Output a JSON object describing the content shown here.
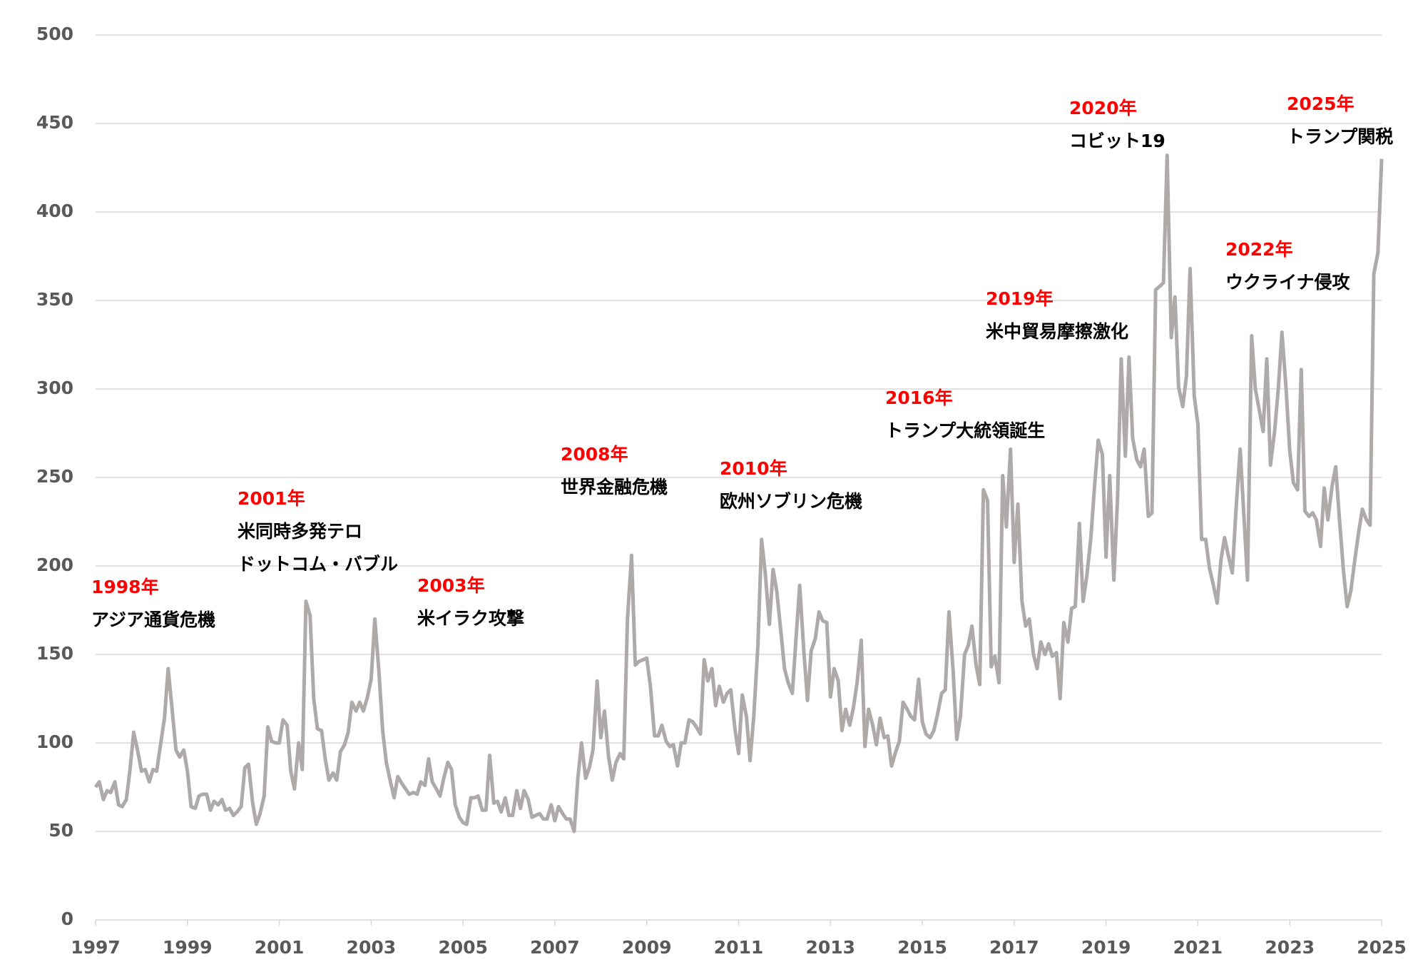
{
  "chart_data": {
    "type": "line",
    "x": [
      1997,
      1997.08,
      1997.17,
      1997.25,
      1997.33,
      1997.42,
      1997.5,
      1997.58,
      1997.67,
      1997.75,
      1997.83,
      1997.92,
      1998,
      1998.08,
      1998.17,
      1998.25,
      1998.33,
      1998.42,
      1998.5,
      1998.58,
      1998.67,
      1998.75,
      1998.83,
      1998.92,
      1999,
      1999.08,
      1999.17,
      1999.25,
      1999.33,
      1999.42,
      1999.5,
      1999.58,
      1999.67,
      1999.75,
      1999.83,
      1999.92,
      2000,
      2000.08,
      2000.17,
      2000.25,
      2000.33,
      2000.42,
      2000.5,
      2000.58,
      2000.67,
      2000.75,
      2000.83,
      2000.92,
      2001,
      2001.08,
      2001.17,
      2001.25,
      2001.33,
      2001.42,
      2001.5,
      2001.58,
      2001.67,
      2001.75,
      2001.83,
      2001.92,
      2002,
      2002.08,
      2002.17,
      2002.25,
      2002.33,
      2002.42,
      2002.5,
      2002.58,
      2002.67,
      2002.75,
      2002.83,
      2002.92,
      2003,
      2003.08,
      2003.17,
      2003.25,
      2003.33,
      2003.42,
      2003.5,
      2003.58,
      2003.67,
      2003.75,
      2003.83,
      2003.92,
      2004,
      2004.08,
      2004.17,
      2004.25,
      2004.33,
      2004.42,
      2004.5,
      2004.58,
      2004.67,
      2004.75,
      2004.83,
      2004.92,
      2005,
      2005.08,
      2005.17,
      2005.25,
      2005.33,
      2005.42,
      2005.5,
      2005.58,
      2005.67,
      2005.75,
      2005.83,
      2005.92,
      2006,
      2006.08,
      2006.17,
      2006.25,
      2006.33,
      2006.42,
      2006.5,
      2006.58,
      2006.67,
      2006.75,
      2006.83,
      2006.92,
      2007,
      2007.08,
      2007.17,
      2007.25,
      2007.33,
      2007.42,
      2007.5,
      2007.58,
      2007.67,
      2007.75,
      2007.83,
      2007.92,
      2008,
      2008.08,
      2008.17,
      2008.25,
      2008.33,
      2008.42,
      2008.5,
      2008.58,
      2008.67,
      2008.75,
      2008.83,
      2008.92,
      2009,
      2009.08,
      2009.17,
      2009.25,
      2009.33,
      2009.42,
      2009.5,
      2009.58,
      2009.67,
      2009.75,
      2009.83,
      2009.92,
      2010,
      2010.08,
      2010.17,
      2010.25,
      2010.33,
      2010.42,
      2010.5,
      2010.58,
      2010.67,
      2010.75,
      2010.83,
      2010.92,
      2011,
      2011.08,
      2011.17,
      2011.25,
      2011.33,
      2011.42,
      2011.5,
      2011.58,
      2011.67,
      2011.75,
      2011.83,
      2011.92,
      2012,
      2012.08,
      2012.17,
      2012.25,
      2012.33,
      2012.42,
      2012.5,
      2012.58,
      2012.67,
      2012.75,
      2012.83,
      2012.92,
      2013,
      2013.08,
      2013.17,
      2013.25,
      2013.33,
      2013.42,
      2013.5,
      2013.58,
      2013.67,
      2013.75,
      2013.83,
      2013.92,
      2014,
      2014.08,
      2014.17,
      2014.25,
      2014.33,
      2014.42,
      2014.5,
      2014.58,
      2014.67,
      2014.75,
      2014.83,
      2014.92,
      2015,
      2015.08,
      2015.17,
      2015.25,
      2015.33,
      2015.42,
      2015.5,
      2015.58,
      2015.67,
      2015.75,
      2015.83,
      2015.92,
      2016,
      2016.08,
      2016.17,
      2016.25,
      2016.33,
      2016.42,
      2016.5,
      2016.58,
      2016.67,
      2016.75,
      2016.83,
      2016.92,
      2017,
      2017.08,
      2017.17,
      2017.25,
      2017.33,
      2017.42,
      2017.5,
      2017.58,
      2017.67,
      2017.75,
      2017.83,
      2017.92,
      2018,
      2018.08,
      2018.17,
      2018.25,
      2018.33,
      2018.42,
      2018.5,
      2018.58,
      2018.67,
      2018.75,
      2018.83,
      2018.92,
      2019,
      2019.08,
      2019.17,
      2019.25,
      2019.33,
      2019.42,
      2019.5,
      2019.58,
      2019.67,
      2019.75,
      2019.83,
      2019.92,
      2020,
      2020.08,
      2020.17,
      2020.25,
      2020.33,
      2020.42,
      2020.5,
      2020.58,
      2020.67,
      2020.75,
      2020.83,
      2020.92,
      2021,
      2021.08,
      2021.17,
      2021.25,
      2021.33,
      2021.42,
      2021.5,
      2021.58,
      2021.67,
      2021.75,
      2021.83,
      2021.92,
      2022,
      2022.08,
      2022.17,
      2022.25,
      2022.33,
      2022.42,
      2022.5,
      2022.58,
      2022.67,
      2022.75,
      2022.83,
      2022.92,
      2023,
      2023.08,
      2023.17,
      2023.25,
      2023.33,
      2023.42,
      2023.5,
      2023.58,
      2023.67,
      2023.75,
      2023.83,
      2023.92,
      2024,
      2024.08,
      2024.17,
      2024.25,
      2024.33,
      2024.42,
      2024.5,
      2024.58,
      2024.67,
      2024.75,
      2024.83,
      2024.92,
      2025
    ],
    "series": [
      {
        "color": "#aeaaaa",
        "values": [
          75,
          78,
          68,
          73,
          72,
          78,
          65,
          64,
          68,
          85,
          106,
          95,
          84,
          85,
          78,
          85,
          84,
          100,
          114,
          142,
          118,
          96,
          92,
          96,
          84,
          64,
          63,
          70,
          71,
          71,
          62,
          67,
          65,
          68,
          62,
          63,
          59,
          61,
          64,
          86,
          88,
          66,
          54,
          60,
          70,
          109,
          101,
          100,
          100,
          113,
          110,
          84,
          74,
          100,
          85,
          180,
          172,
          125,
          108,
          107,
          91,
          79,
          83,
          79,
          95,
          99,
          106,
          123,
          118,
          123,
          118,
          126,
          136,
          170,
          140,
          107,
          89,
          78,
          69,
          81,
          77,
          74,
          71,
          72,
          71,
          78,
          76,
          91,
          78,
          74,
          70,
          80,
          89,
          85,
          65,
          58,
          55,
          54,
          69,
          69,
          70,
          62,
          62,
          93,
          66,
          67,
          61,
          69,
          59,
          59,
          73,
          63,
          73,
          68,
          58,
          59,
          60,
          57,
          57,
          65,
          56,
          64,
          60,
          57,
          57,
          50,
          80,
          100,
          80,
          86,
          96,
          135,
          103,
          118,
          92,
          79,
          89,
          94,
          91,
          170,
          206,
          144,
          146,
          147,
          148,
          132,
          104,
          104,
          110,
          101,
          98,
          99,
          87,
          100,
          100,
          113,
          112,
          109,
          105,
          147,
          135,
          142,
          121,
          132,
          123,
          128,
          130,
          108,
          94,
          127,
          115,
          90,
          115,
          155,
          215,
          196,
          167,
          198,
          186,
          163,
          142,
          134,
          128,
          159,
          189,
          152,
          124,
          152,
          159,
          174,
          169,
          168,
          126,
          142,
          135,
          107,
          119,
          110,
          120,
          134,
          158,
          98,
          119,
          110,
          99,
          114,
          103,
          104,
          87,
          95,
          101,
          123,
          119,
          115,
          113,
          136,
          112,
          105,
          103,
          107,
          116,
          128,
          130,
          174,
          141,
          102,
          115,
          150,
          155,
          166,
          144,
          133,
          243,
          237,
          143,
          149,
          134,
          251,
          222,
          266,
          202,
          235,
          180,
          166,
          170,
          150,
          142,
          157,
          150,
          156,
          149,
          151,
          125,
          168,
          157,
          176,
          177,
          224,
          180,
          194,
          216,
          245,
          271,
          263,
          205,
          251,
          192,
          238,
          317,
          262,
          318,
          272,
          260,
          256,
          266,
          228,
          230,
          356,
          358,
          360,
          432,
          329,
          352,
          301,
          290,
          307,
          368,
          296,
          280,
          215,
          215,
          199,
          190,
          179,
          203,
          216,
          205,
          196,
          232,
          266,
          229,
          192,
          330,
          300,
          289,
          276,
          317,
          257,
          276,
          300,
          332,
          300,
          265,
          247,
          243,
          311,
          231,
          228,
          230,
          226,
          211,
          244,
          226,
          245,
          256,
          227,
          197,
          177,
          186,
          204,
          219,
          232,
          226,
          223,
          365,
          377,
          430
        ]
      }
    ],
    "xlim": [
      1997,
      2025
    ],
    "xticks": [
      1997,
      1999,
      2001,
      2003,
      2005,
      2007,
      2009,
      2011,
      2013,
      2015,
      2017,
      2019,
      2021,
      2023,
      2025
    ],
    "ylim": [
      0,
      500
    ],
    "yticks": [
      0,
      50,
      100,
      150,
      200,
      250,
      300,
      350,
      400,
      450,
      500
    ],
    "grid": true,
    "annotations": [
      {
        "year": "1998年",
        "lines": [
          "アジア通貨危機"
        ]
      },
      {
        "year": "2001年",
        "lines": [
          "米同時多発テロ",
          "ドットコム・バブル"
        ]
      },
      {
        "year": "2003年",
        "lines": [
          "米イラク攻撃"
        ]
      },
      {
        "year": "2008年",
        "lines": [
          "世界金融危機"
        ]
      },
      {
        "year": "2010年",
        "lines": [
          "欧州ソブリン危機"
        ]
      },
      {
        "year": "2016年",
        "lines": [
          "トランプ大統領誕生"
        ]
      },
      {
        "year": "2019年",
        "lines": [
          "米中貿易摩擦激化"
        ]
      },
      {
        "year": "2020年",
        "lines": [
          "コビット19"
        ]
      },
      {
        "year": "2022年",
        "lines": [
          "ウクライナ侵攻"
        ]
      },
      {
        "year": "2025年",
        "lines": [
          "トランプ関税"
        ]
      }
    ]
  }
}
